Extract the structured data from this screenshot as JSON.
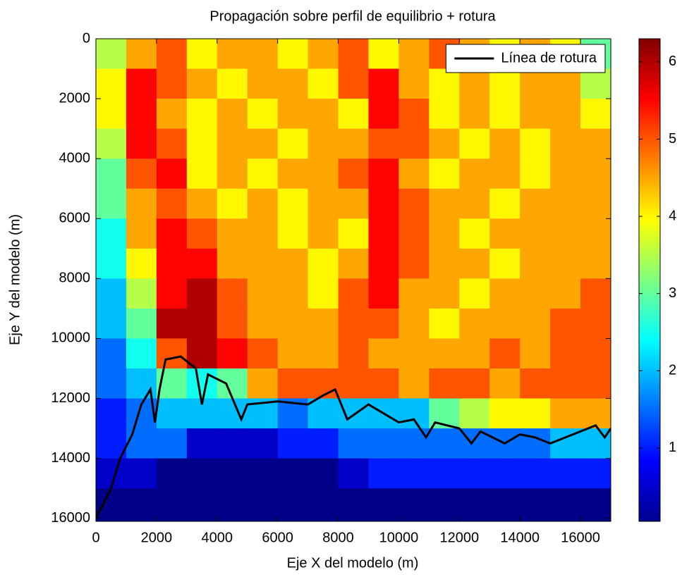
{
  "chart_data": {
    "type": "heatmap",
    "title": "Propagación sobre perfil de equilibrio + rotura",
    "xlabel": "Eje X del modelo (m)",
    "ylabel": "Eje Y del modelo (m)",
    "xlim": [
      0,
      17000
    ],
    "ylim": [
      0,
      16100
    ],
    "y_reversed": true,
    "xticks": [
      0,
      2000,
      4000,
      6000,
      8000,
      10000,
      12000,
      14000,
      16000
    ],
    "yticks": [
      0,
      2000,
      4000,
      6000,
      8000,
      10000,
      12000,
      14000,
      16000
    ],
    "x_edges": [
      0,
      1000,
      2000,
      3000,
      4000,
      5000,
      6000,
      7000,
      8000,
      9000,
      10000,
      11000,
      12000,
      13000,
      14000,
      15000,
      16000,
      17000
    ],
    "y_edges": [
      0,
      1000,
      2000,
      3000,
      4000,
      5000,
      6000,
      7000,
      8000,
      9000,
      10000,
      11000,
      12000,
      13000,
      14000,
      15000,
      16100
    ],
    "z": [
      [
        3.5,
        4.5,
        5,
        4,
        4.5,
        4.5,
        4,
        4.5,
        5,
        4,
        4.5,
        5,
        4.5,
        4,
        4.5,
        4,
        3
      ],
      [
        4,
        5.5,
        5,
        4.5,
        4,
        4.5,
        4.5,
        4,
        5,
        5.5,
        4.5,
        4,
        4.5,
        4,
        4.5,
        4.5,
        3.5
      ],
      [
        4,
        5.5,
        4.5,
        4,
        4.5,
        4,
        4.5,
        4.5,
        4,
        5.5,
        5,
        4,
        4.5,
        4,
        4.5,
        4.5,
        4
      ],
      [
        3.5,
        5.5,
        5,
        4,
        4.5,
        4.5,
        4,
        4.5,
        4.5,
        5,
        5,
        4.5,
        4,
        4.5,
        4,
        4.5,
        4.5
      ],
      [
        3,
        5,
        5.5,
        4,
        4.5,
        4,
        4.5,
        4.5,
        5,
        5.5,
        4.5,
        4,
        4.5,
        4.5,
        4,
        4.5,
        4.5
      ],
      [
        3,
        4.5,
        5,
        4.5,
        4,
        4.5,
        4,
        4.5,
        4.5,
        5.5,
        5,
        4.5,
        4.5,
        4,
        4.5,
        4.5,
        4.5
      ],
      [
        2.5,
        4.5,
        5.5,
        5,
        4.5,
        4.5,
        4,
        4.5,
        4,
        5.5,
        5,
        4.5,
        4,
        4.5,
        4.5,
        4.5,
        4.5
      ],
      [
        2.5,
        4,
        5.5,
        5.5,
        4.5,
        4.5,
        4.5,
        4,
        4.5,
        5.5,
        5,
        4.5,
        4.5,
        4,
        4.5,
        4.5,
        4.5
      ],
      [
        2,
        3.5,
        5.5,
        6,
        5,
        4.5,
        4.5,
        4,
        5,
        5.5,
        4.5,
        4.5,
        4,
        4.5,
        4.5,
        4.5,
        5
      ],
      [
        2,
        3,
        6,
        6,
        5,
        4.5,
        4.5,
        4.5,
        5,
        5,
        4.5,
        4,
        4.5,
        4.5,
        4.5,
        5,
        5
      ],
      [
        1.5,
        2.5,
        5,
        6,
        5.5,
        5,
        4.5,
        4.5,
        5,
        4.5,
        4.5,
        4.5,
        4.5,
        5,
        4.5,
        5,
        5
      ],
      [
        1.5,
        2,
        3,
        2.5,
        3,
        4.5,
        5,
        5,
        5,
        5,
        4.5,
        5,
        5,
        4.5,
        5,
        5,
        5
      ],
      [
        1,
        1.5,
        2,
        2,
        2,
        2,
        1.5,
        2,
        2,
        2,
        2,
        3,
        3.5,
        4,
        4,
        4.5,
        4.5
      ],
      [
        1,
        1.5,
        1.5,
        0.5,
        0.5,
        0.5,
        1,
        1,
        1.5,
        1.5,
        1.5,
        1.5,
        1.5,
        1.5,
        1.5,
        2,
        2
      ],
      [
        0.5,
        0.5,
        0.1,
        0.1,
        0.1,
        0.1,
        0.1,
        0.1,
        0.5,
        1,
        1,
        1,
        1,
        1,
        1,
        1,
        1
      ],
      [
        0.1,
        0.1,
        0.1,
        0.1,
        0.1,
        0.1,
        0.1,
        0.1,
        0.1,
        0.1,
        0.1,
        0.1,
        0.1,
        0.1,
        0.1,
        0.1,
        0.1
      ]
    ],
    "colormap": "jet",
    "clim": [
      0.05,
      6.3
    ],
    "cticks": [
      1,
      2,
      3,
      4,
      5,
      6
    ],
    "legend": "upper right",
    "series": [
      {
        "name": "Línea de rotura",
        "color": "#000000",
        "x": [
          0,
          500,
          800,
          1200,
          1500,
          1800,
          1950,
          2100,
          2300,
          2800,
          3300,
          3500,
          3700,
          4300,
          4800,
          5000,
          6000,
          7000,
          7500,
          7900,
          8300,
          9000,
          9500,
          10000,
          10500,
          10900,
          11200,
          12000,
          12400,
          12700,
          13500,
          14000,
          14500,
          15000,
          15500,
          16000,
          16500,
          16800,
          17000
        ],
        "values": [
          16000,
          15000,
          14000,
          13200,
          12200,
          11700,
          12800,
          11700,
          10700,
          10600,
          11000,
          12200,
          11200,
          11500,
          12700,
          12200,
          12100,
          12200,
          11900,
          11700,
          12700,
          12200,
          12500,
          12800,
          12700,
          13300,
          12800,
          13000,
          13500,
          13100,
          13500,
          13200,
          13300,
          13500,
          13300,
          13100,
          12900,
          13300,
          13000
        ]
      }
    ]
  }
}
